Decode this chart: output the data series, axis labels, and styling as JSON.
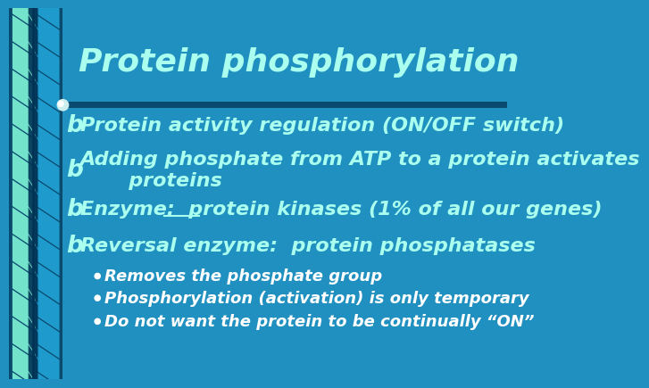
{
  "title": "Protein phosphorylation",
  "bg_color": "#2090c0",
  "content_bg_color": "#2090c0",
  "title_color": "#aaffee",
  "separator_color": "#0a4a6e",
  "bullet_color": "#aaffee",
  "bullet_symbol": "b",
  "sub_bullet_color": "#ffffff",
  "sub_bullet_symbol": "•",
  "bullets": [
    "Protein activity regulation (ON/OFF switch)",
    "Adding phosphate from ATP to a protein activates\n       proteins",
    "Enzyme:  protein kinases (1% of all our genes)",
    "Reversal enzyme:  protein phosphatases"
  ],
  "sub_bullets": [
    "Removes the phosphate group",
    "Phosphorylation (activation) is only temporary",
    "Do not want the protein to be continually “ON”"
  ],
  "title_fontsize": 26,
  "bullet_fontsize": 16,
  "sub_bullet_fontsize": 13,
  "ribbon_bg": "#0a4a6e",
  "ribbon_light": "#88ffdd",
  "ribbon_mid": "#22aadd",
  "ribbon_dark": "#003355"
}
